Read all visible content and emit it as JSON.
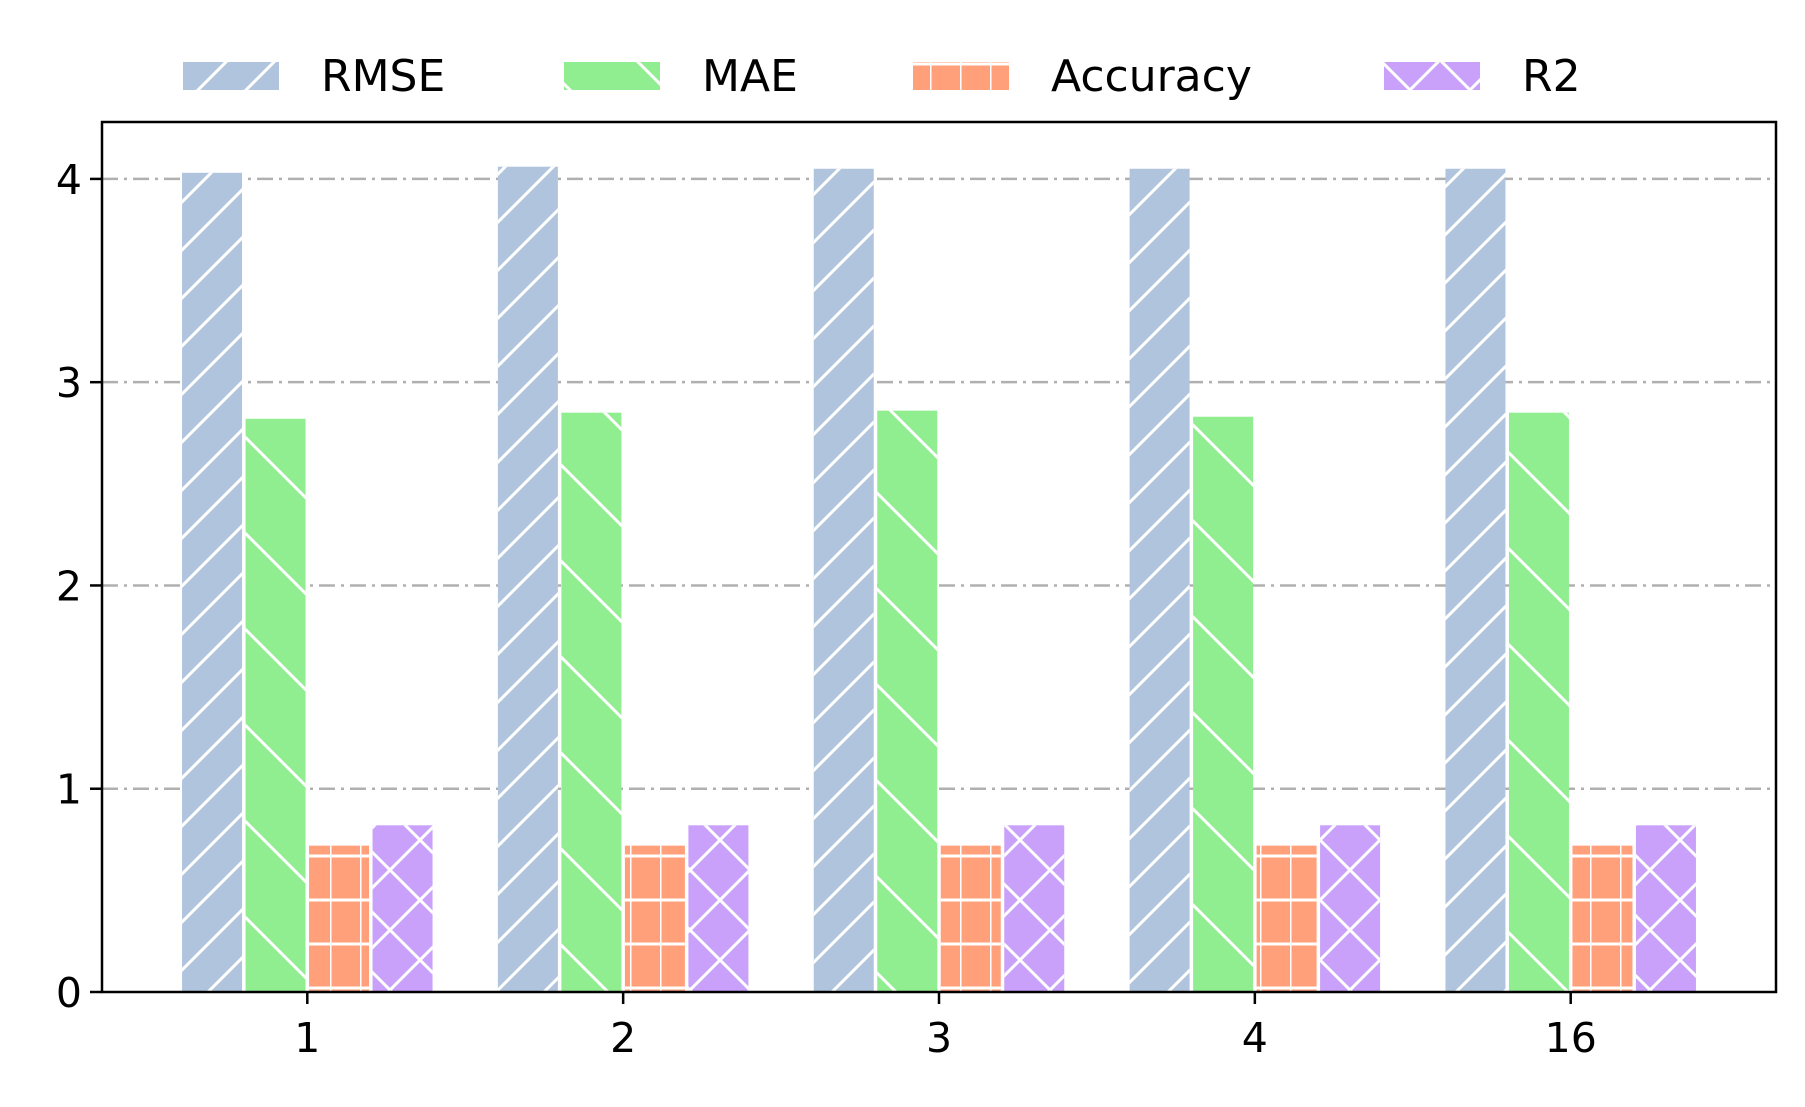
{
  "chart_data": {
    "type": "bar",
    "categories": [
      "1",
      "2",
      "3",
      "4",
      "16"
    ],
    "series": [
      {
        "name": "RMSE",
        "color": "#b0c4de",
        "hatch": "diagonal-forward",
        "values": [
          4.03,
          4.06,
          4.05,
          4.05,
          4.05
        ]
      },
      {
        "name": "MAE",
        "color": "#90ee90",
        "hatch": "diagonal-backward",
        "values": [
          2.82,
          2.85,
          2.86,
          2.83,
          2.85
        ]
      },
      {
        "name": "Accuracy",
        "color": "#ffa07a",
        "hatch": "grid",
        "values": [
          0.72,
          0.72,
          0.72,
          0.72,
          0.72
        ]
      },
      {
        "name": "R2",
        "color": "#c9a0fa",
        "hatch": "cross-diagonal",
        "values": [
          0.82,
          0.82,
          0.82,
          0.82,
          0.82
        ]
      }
    ],
    "ylim": [
      0,
      4.28
    ],
    "yticks": [
      "0",
      "1",
      "2",
      "3",
      "4"
    ],
    "grid": "horizontal dash-dot",
    "legend": "top, outside plot",
    "title": "",
    "xlabel": "",
    "ylabel": ""
  }
}
